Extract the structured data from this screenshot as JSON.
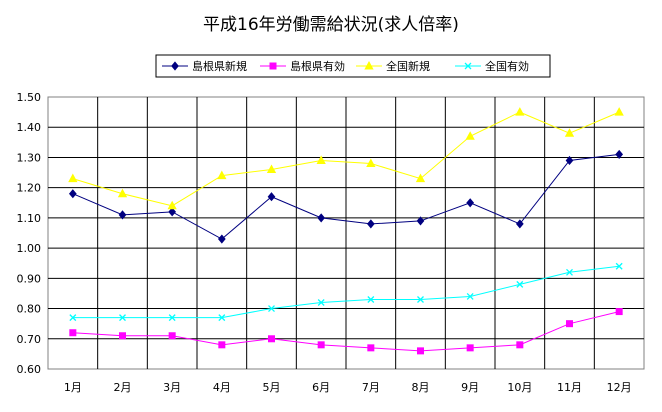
{
  "chart_data": {
    "type": "line",
    "title": "平成16年労働需給状況(求人倍率)",
    "xlabel": "",
    "ylabel": "",
    "categories": [
      "1月",
      "2月",
      "3月",
      "4月",
      "5月",
      "6月",
      "7月",
      "8月",
      "9月",
      "10月",
      "11月",
      "12月"
    ],
    "ylim": [
      0.6,
      1.5
    ],
    "yticks": [
      "0.60",
      "0.70",
      "0.80",
      "0.90",
      "1.00",
      "1.10",
      "1.20",
      "1.30",
      "1.40",
      "1.50"
    ],
    "grid": true,
    "legend_position": "top",
    "series": [
      {
        "name": "島根県新規",
        "color": "#000080",
        "marker": "diamond",
        "values": [
          1.18,
          1.11,
          1.12,
          1.03,
          1.17,
          1.1,
          1.08,
          1.09,
          1.15,
          1.08,
          1.29,
          1.31
        ]
      },
      {
        "name": "島根県有効",
        "color": "#FF00FF",
        "marker": "square",
        "values": [
          0.72,
          0.71,
          0.71,
          0.68,
          0.7,
          0.68,
          0.67,
          0.66,
          0.67,
          0.68,
          0.75,
          0.79
        ]
      },
      {
        "name": "全国新規",
        "color": "#FFFF00",
        "marker": "triangle",
        "values": [
          1.23,
          1.18,
          1.14,
          1.24,
          1.26,
          1.29,
          1.28,
          1.23,
          1.37,
          1.45,
          1.38,
          1.45
        ]
      },
      {
        "name": "全国有効",
        "color": "#00FFFF",
        "marker": "x",
        "values": [
          0.77,
          0.77,
          0.77,
          0.77,
          0.8,
          0.82,
          0.83,
          0.83,
          0.84,
          0.88,
          0.92,
          0.94
        ]
      }
    ]
  }
}
